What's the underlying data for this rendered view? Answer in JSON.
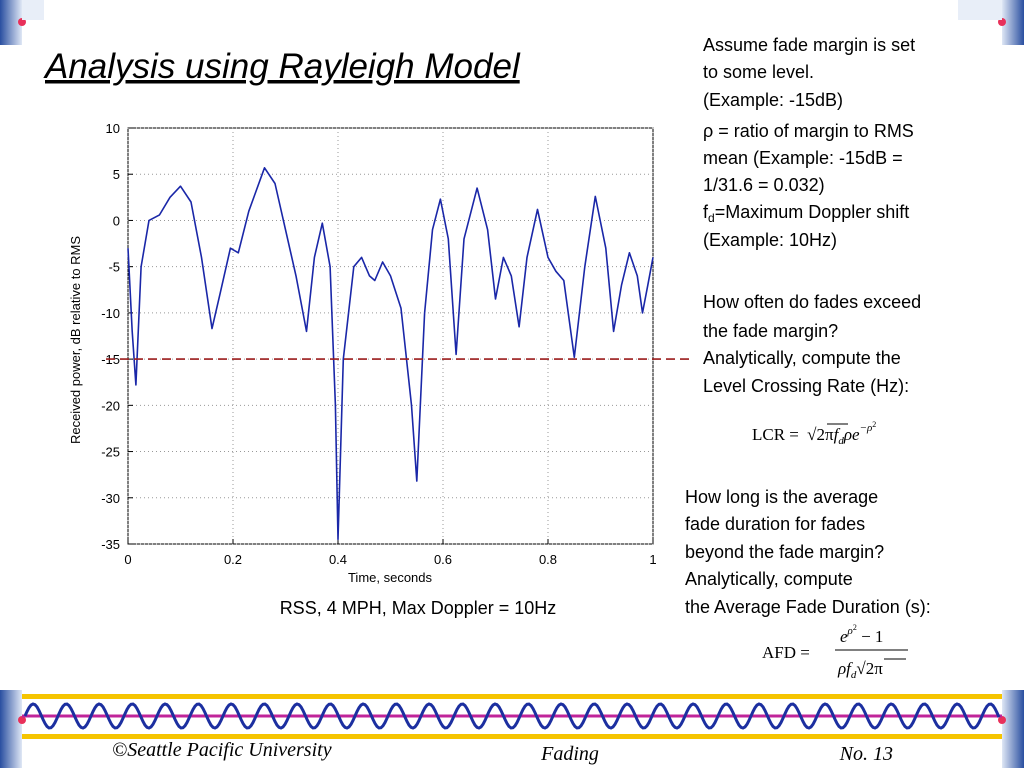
{
  "title": "Analysis using Rayleigh Model",
  "chart_data": {
    "type": "line",
    "ylabel": "Received power, dB relative to RMS",
    "xlabel": "Time, seconds",
    "caption": "RSS, 4 MPH, Max Doppler = 10Hz",
    "x": [
      0,
      0.008,
      0.015,
      0.025,
      0.04,
      0.06,
      0.08,
      0.1,
      0.12,
      0.14,
      0.16,
      0.175,
      0.195,
      0.21,
      0.23,
      0.26,
      0.28,
      0.3,
      0.32,
      0.34,
      0.355,
      0.37,
      0.385,
      0.395,
      0.4,
      0.41,
      0.43,
      0.445,
      0.46,
      0.47,
      0.485,
      0.5,
      0.52,
      0.54,
      0.55,
      0.565,
      0.58,
      0.595,
      0.61,
      0.625,
      0.64,
      0.665,
      0.685,
      0.7,
      0.715,
      0.73,
      0.745,
      0.76,
      0.78,
      0.8,
      0.815,
      0.83,
      0.85,
      0.87,
      0.89,
      0.91,
      0.925,
      0.94,
      0.955,
      0.97,
      0.98,
      0.99,
      1.0
    ],
    "values": [
      -3,
      -12,
      -17.8,
      -5,
      0,
      0.6,
      2.5,
      3.7,
      2,
      -4,
      -11.7,
      -8,
      -3,
      -3.5,
      1,
      5.7,
      4,
      -1,
      -6,
      -12,
      -4,
      -0.3,
      -5,
      -20,
      -34.5,
      -15,
      -5,
      -4,
      -6,
      -6.5,
      -4.5,
      -6,
      -9.5,
      -20,
      -28.2,
      -10,
      -1,
      2.3,
      -2,
      -14.5,
      -2,
      3.5,
      -1,
      -8.5,
      -4,
      -6,
      -11.5,
      -4,
      1.2,
      -4,
      -5.5,
      -6.5,
      -14.8,
      -5,
      2.6,
      -3,
      -12,
      -7,
      -3.5,
      -6,
      -10,
      -7,
      -4
    ],
    "color": "#1a27a8",
    "xlim": [
      0,
      1
    ],
    "xticks": [
      0,
      0.2,
      0.4,
      0.6,
      0.8,
      1
    ],
    "ylim": [
      -35,
      10
    ],
    "yticks": [
      -35,
      -30,
      -25,
      -20,
      -15,
      -10,
      -5,
      0,
      5,
      10
    ],
    "grid": true,
    "reference_line": -15,
    "reference_color": "#9b1c1c"
  },
  "notes": {
    "block1": [
      "Assume fade margin is set",
      "to some level.",
      "(Example: -15dB)",
      "ρ = ratio of margin to RMS",
      "mean (Example: -15dB =",
      "1/31.6 = 0.032)"
    ],
    "doppler": [
      "f",
      "d",
      "=Maximum Doppler shift"
    ],
    "doppler_example": "(Example: 10Hz)",
    "block2": [
      "How often do fades exceed",
      "the fade margin?",
      "Analytically, compute the",
      "Level Crossing Rate (Hz):"
    ],
    "lcr": [
      "LCR = ",
      "2π",
      "f",
      "d",
      "ρe",
      "−ρ",
      "2"
    ],
    "block3": [
      "How long is the average",
      "fade duration for fades",
      "beyond the fade margin?",
      "Analytically, compute",
      "the Average Fade Duration (s):"
    ],
    "afd": [
      "AFD =",
      "e",
      "ρ",
      "2",
      " − 1",
      "ρf",
      "d",
      "2π"
    ]
  },
  "footer": {
    "left": "©Seattle Pacific University",
    "center": "Fading",
    "right": "No. 13"
  }
}
